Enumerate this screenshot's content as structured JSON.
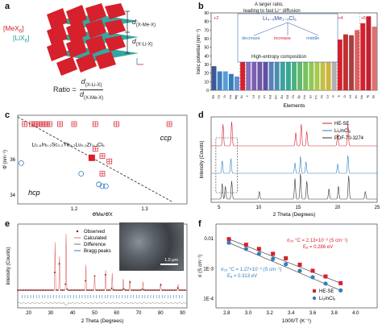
{
  "panels": {
    "a": {
      "label": "a",
      "mex_label": "[MeX",
      "mex_sub": "6",
      "lix_label": "[LiX",
      "lix_sub": "6",
      "d1": "d",
      "d1_sub": "(X-Me-X)",
      "d2": "d",
      "d2_sub": "(X-Li-X)",
      "ratio_prefix": "Ratio =",
      "ratio_num": "d",
      "ratio_num_sub": "(X-Li-X)",
      "ratio_den": "d",
      "ratio_den_sub": "(X-Me-X)",
      "colors": {
        "mex": "#d6202b",
        "lix": "#1e9d96"
      }
    },
    "b": {
      "label": "b",
      "banner_line1": "A larger ratio,",
      "banner_line2": "leading to fast Li⁺ diffusion",
      "formula": "Li₃₋ₓMe₁₋ₓCl₆",
      "lower_labels": [
        "decrease",
        "increase",
        "middle"
      ],
      "bottom_text": "High-entropy composition",
      "region_labels": [
        "+2",
        "+3",
        "+4",
        "+5"
      ],
      "ylabel": "Ionic potential (nm⁻¹)",
      "xlabel": "Elements"
    },
    "c": {
      "label": "c",
      "ylabel": "Φ̄ (nm⁻¹)",
      "xlabel": "Φ̄Me/Φ̄X",
      "formula": "Li₂.₆In₀.₂Sc₀.₂Yb₀.₂Lu₀.₂Zr₀.₂Cl₆",
      "ccp": "ccp",
      "hcp": "hcp",
      "yticks": [
        "36",
        "34"
      ],
      "xticks": [
        "1.2",
        "1.3"
      ]
    },
    "d": {
      "label": "d",
      "ylabel": "Intensity (Counts)",
      "xlabel": "2 Theta (Degrees)",
      "xticks": [
        "5",
        "10",
        "15",
        "20",
        "25"
      ],
      "legend": [
        "HE-SE",
        "Li₃InCl₆",
        "PDF-70-3274"
      ],
      "colors": [
        "#d6202b",
        "#2f7fbf",
        "#333333"
      ]
    },
    "e": {
      "label": "e",
      "ylabel": "Intensity (Counts)",
      "xlabel": "2 Theta (Degrees)",
      "xticks": [
        "20",
        "30",
        "40",
        "50",
        "60",
        "70",
        "80",
        "90"
      ],
      "legend": [
        "Observed",
        "Calculated",
        "Difference",
        "Bragg peaks"
      ],
      "scale_bar": "1.0 μm"
    },
    "f": {
      "label": "f",
      "ylabel": "σ (S cm⁻¹)",
      "xlabel": "1000/T (K⁻¹)",
      "yticks": [
        "0.01",
        "1E-3",
        "1E-4"
      ],
      "xticks": [
        "2.8",
        "3.0",
        "3.2",
        "3.4",
        "3.6",
        "3.8",
        "4.0"
      ],
      "red_ann_1": "σ₂₅ °C = 2.13×10⁻³ (S cm⁻¹)",
      "red_ann_2": "Eₐ = 0.286 eV",
      "blue_ann_1": "σ₂₅ °C = 1.27×10⁻³ (S cm⁻¹)",
      "blue_ann_2": "Eₐ = 0.313 eV",
      "legend": [
        "HE-SE",
        "Li₃InCl₆"
      ],
      "colors": [
        "#d6202b",
        "#2f7fbf"
      ]
    }
  },
  "chart_data": [
    {
      "type": "bar",
      "panel": "b",
      "ylabel": "Ionic potential (nm⁻¹)",
      "xlabel": "Elements",
      "ylim": [
        0,
        90
      ],
      "yticks": [
        0,
        10,
        20,
        30,
        40,
        50,
        60,
        70,
        80,
        90
      ],
      "categories": [
        "Ba",
        "Ca",
        "Sr",
        "Ca",
        "Mg",
        "Sc",
        "Y",
        "La",
        "Ce",
        "Pr",
        "Nd",
        "Sm",
        "Eu",
        "Gd",
        "Tb",
        "Dy",
        "Ho",
        "Er",
        "Tm",
        "Yb",
        "Lu",
        "In",
        "Ti",
        "Zr",
        "Hf",
        "Sn",
        "Nb",
        "Ta",
        "Sb"
      ],
      "values": [
        28,
        22,
        22,
        19,
        16,
        55,
        38,
        34,
        36,
        37,
        38,
        38,
        39,
        40,
        40,
        41,
        41,
        42,
        43,
        44,
        45,
        43,
        59,
        65,
        64,
        70,
        78,
        86,
        74
      ]
    },
    {
      "type": "scatter",
      "panel": "c",
      "xlabel": "Φ̄Me/Φ̄X",
      "ylabel": "Φ̄ (nm⁻¹)",
      "xlim": [
        1.12,
        1.36
      ],
      "ylim": [
        33.5,
        38.5
      ],
      "series": [
        {
          "marker": "red-boxed-cross",
          "x": [
            1.13,
            1.14,
            1.145,
            1.15,
            1.155,
            1.16,
            1.165,
            1.18,
            1.2,
            1.23,
            1.26,
            1.335,
            1.23,
            1.24,
            1.25,
            1.24
          ],
          "y": [
            38.0,
            38.0,
            38.0,
            38.0,
            38.0,
            38.0,
            38.0,
            38.0,
            38.0,
            38.0,
            38.0,
            38.0,
            36.6,
            36.2,
            35.9,
            35.2
          ]
        },
        {
          "marker": "red-filled-square",
          "x": [
            1.225
          ],
          "y": [
            36.1
          ]
        },
        {
          "marker": "blue-open-circle",
          "x": [
            1.125,
            1.21,
            1.235,
            1.24,
            1.245
          ],
          "y": [
            35.8,
            35.2,
            34.6,
            34.5,
            34.5
          ]
        }
      ],
      "boundary_line": {
        "x": [
          1.12,
          1.34
        ],
        "y": [
          38.4,
          33.6
        ]
      }
    },
    {
      "type": "line",
      "panel": "d",
      "xlabel": "2 Theta (Degrees)",
      "ylabel": "Intensity (Counts)",
      "xlim": [
        4,
        25
      ],
      "series": [
        {
          "name": "HE-SE",
          "peaks": [
            [
              5.5,
              0.9
            ],
            [
              6.6,
              1.0
            ],
            [
              14.7,
              0.55
            ],
            [
              15.4,
              0.9
            ],
            [
              16.1,
              0.6
            ],
            [
              20.0,
              0.5
            ],
            [
              21.3,
              0.9
            ]
          ]
        },
        {
          "name": "Li₃InCl₆",
          "peaks": [
            [
              5.4,
              0.6
            ],
            [
              6.5,
              0.7
            ],
            [
              14.6,
              0.5
            ],
            [
              15.3,
              0.8
            ],
            [
              16.0,
              0.55
            ],
            [
              20.0,
              0.45
            ],
            [
              21.3,
              0.85
            ]
          ]
        },
        {
          "name": "PDF-70-3274",
          "peaks": [
            [
              5.4,
              0.6
            ],
            [
              5.8,
              0.5
            ],
            [
              6.6,
              0.7
            ],
            [
              10.1,
              0.3
            ],
            [
              14.6,
              0.8
            ],
            [
              15.3,
              1.0
            ],
            [
              16.1,
              0.7
            ],
            [
              18.9,
              0.4
            ],
            [
              20.1,
              0.5
            ],
            [
              21.4,
              0.9
            ],
            [
              23.5,
              0.3
            ]
          ]
        }
      ]
    },
    {
      "type": "line",
      "panel": "e",
      "xlabel": "2 Theta (Degrees)",
      "ylabel": "Intensity (Counts)",
      "xlim": [
        15,
        92
      ],
      "series": [
        {
          "name": "Observed",
          "peaks": [
            [
              32,
              0.85
            ],
            [
              34,
              0.6
            ],
            [
              37,
              1.0
            ],
            [
              46,
              0.45
            ],
            [
              50,
              0.25
            ],
            [
              55,
              0.35
            ],
            [
              58,
              0.3
            ],
            [
              63,
              0.2
            ],
            [
              66,
              0.18
            ],
            [
              72,
              0.15
            ],
            [
              80,
              0.12
            ],
            [
              88,
              0.1
            ]
          ]
        }
      ]
    },
    {
      "type": "scatter",
      "panel": "f",
      "xlabel": "1000/T (K⁻¹)",
      "ylabel": "σ (S cm⁻¹)",
      "xlim": [
        2.7,
        4.2
      ],
      "ylog": true,
      "ylim": [
        5e-05,
        0.03
      ],
      "series": [
        {
          "name": "HE-SE",
          "x": [
            2.82,
            2.98,
            3.1,
            3.23,
            3.35,
            3.48,
            3.6,
            3.72,
            3.86
          ],
          "y": [
            0.0095,
            0.0062,
            0.0045,
            0.0031,
            0.0022,
            0.00135,
            0.00085,
            0.00055,
            0.00033
          ]
        },
        {
          "name": "Li₃InCl₆",
          "x": [
            2.82,
            2.98,
            3.1,
            3.23,
            3.35,
            3.48,
            3.6,
            3.72,
            3.86
          ],
          "y": [
            0.0072,
            0.0045,
            0.0031,
            0.0021,
            0.0014,
            0.00085,
            0.00052,
            0.00032,
            0.00019
          ]
        }
      ]
    }
  ]
}
